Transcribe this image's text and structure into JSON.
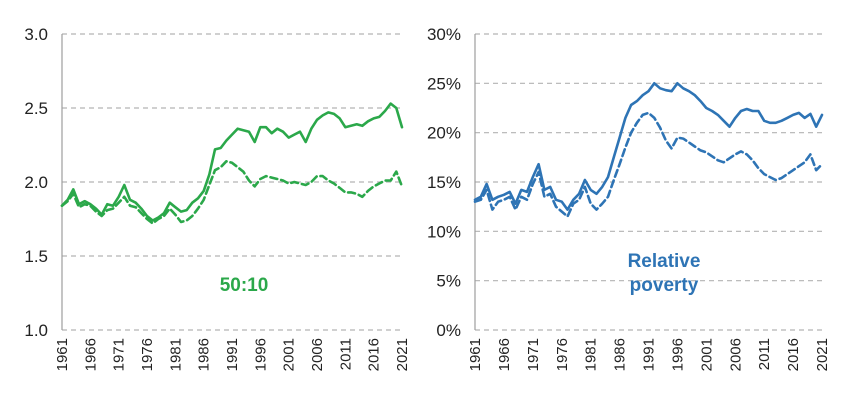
{
  "chart_data": [
    {
      "type": "line",
      "x_ticks": [
        "1961",
        "1966",
        "1971",
        "1976",
        "1981",
        "1986",
        "1991",
        "1996",
        "2001",
        "2006",
        "2011",
        "2016",
        "2021"
      ],
      "y_ticks": [
        "1.0",
        "1.5",
        "2.0",
        "2.5",
        "3.0"
      ],
      "ylim": [
        1.0,
        3.0
      ],
      "xlim": [
        1961,
        2021
      ],
      "grid": "horizontal dashed",
      "annotation": "50:10",
      "color": "#2ba84a",
      "series": [
        {
          "style": "solid",
          "x": [
            1961,
            1962,
            1963,
            1964,
            1965,
            1966,
            1967,
            1968,
            1969,
            1970,
            1971,
            1972,
            1973,
            1974,
            1975,
            1976,
            1977,
            1978,
            1979,
            1980,
            1981,
            1982,
            1983,
            1984,
            1985,
            1986,
            1987,
            1988,
            1989,
            1990,
            1991,
            1992,
            1993,
            1994,
            1995,
            1996,
            1997,
            1998,
            1999,
            2000,
            2001,
            2002,
            2003,
            2004,
            2005,
            2006,
            2007,
            2008,
            2009,
            2010,
            2011,
            2012,
            2013,
            2014,
            2015,
            2016,
            2017,
            2018,
            2019,
            2020,
            2021
          ],
          "values": [
            1.84,
            1.88,
            1.95,
            1.85,
            1.87,
            1.85,
            1.82,
            1.78,
            1.85,
            1.84,
            1.9,
            1.98,
            1.88,
            1.86,
            1.82,
            1.77,
            1.74,
            1.76,
            1.79,
            1.86,
            1.83,
            1.8,
            1.81,
            1.86,
            1.89,
            1.94,
            2.05,
            2.22,
            2.23,
            2.28,
            2.32,
            2.36,
            2.35,
            2.34,
            2.27,
            2.37,
            2.37,
            2.33,
            2.36,
            2.34,
            2.3,
            2.32,
            2.34,
            2.27,
            2.36,
            2.42,
            2.45,
            2.47,
            2.46,
            2.43,
            2.37,
            2.38,
            2.39,
            2.38,
            2.41,
            2.43,
            2.44,
            2.48,
            2.53,
            2.5,
            2.37
          ]
        },
        {
          "style": "dashed",
          "x": [
            1961,
            1962,
            1963,
            1964,
            1965,
            1966,
            1967,
            1968,
            1969,
            1970,
            1971,
            1972,
            1973,
            1974,
            1975,
            1976,
            1977,
            1978,
            1979,
            1980,
            1981,
            1982,
            1983,
            1984,
            1985,
            1986,
            1987,
            1988,
            1989,
            1990,
            1991,
            1992,
            1993,
            1994,
            1995,
            1996,
            1997,
            1998,
            1999,
            2000,
            2001,
            2002,
            2003,
            2004,
            2005,
            2006,
            2007,
            2008,
            2009,
            2010,
            2011,
            2012,
            2013,
            2014,
            2015,
            2016,
            2017,
            2018,
            2019,
            2020,
            2021
          ],
          "values": [
            1.84,
            1.87,
            1.92,
            1.83,
            1.85,
            1.84,
            1.8,
            1.77,
            1.81,
            1.82,
            1.86,
            1.9,
            1.84,
            1.83,
            1.79,
            1.75,
            1.72,
            1.75,
            1.77,
            1.82,
            1.78,
            1.73,
            1.74,
            1.77,
            1.82,
            1.88,
            1.98,
            2.08,
            2.1,
            2.14,
            2.13,
            2.1,
            2.07,
            2.01,
            1.97,
            2.02,
            2.04,
            2.03,
            2.02,
            2.01,
            1.99,
            2.0,
            1.99,
            1.98,
            2.0,
            2.04,
            2.04,
            2.01,
            1.99,
            1.96,
            1.93,
            1.93,
            1.92,
            1.9,
            1.94,
            1.97,
            1.99,
            2.01,
            2.01,
            2.07,
            1.97
          ]
        }
      ]
    },
    {
      "type": "line",
      "x_ticks": [
        "1961",
        "1966",
        "1971",
        "1976",
        "1981",
        "1986",
        "1991",
        "1996",
        "2001",
        "2006",
        "2011",
        "2016",
        "2021"
      ],
      "y_ticks": [
        "0%",
        "5%",
        "10%",
        "15%",
        "20%",
        "25%",
        "30%"
      ],
      "ylim": [
        0,
        30
      ],
      "xlim": [
        1961,
        2021
      ],
      "grid": "horizontal dashed",
      "annotation": [
        "Relative",
        "poverty"
      ],
      "color": "#2e74b5",
      "series": [
        {
          "style": "solid",
          "x": [
            1961,
            1962,
            1963,
            1964,
            1965,
            1966,
            1967,
            1968,
            1969,
            1970,
            1971,
            1972,
            1973,
            1974,
            1975,
            1976,
            1977,
            1978,
            1979,
            1980,
            1981,
            1982,
            1983,
            1984,
            1985,
            1986,
            1987,
            1988,
            1989,
            1990,
            1991,
            1992,
            1993,
            1994,
            1995,
            1996,
            1997,
            1998,
            1999,
            2000,
            2001,
            2002,
            2003,
            2004,
            2005,
            2006,
            2007,
            2008,
            2009,
            2010,
            2011,
            2012,
            2013,
            2014,
            2015,
            2016,
            2017,
            2018,
            2019,
            2020,
            2021
          ],
          "values": [
            13.2,
            13.5,
            14.8,
            13.2,
            13.5,
            13.7,
            14.0,
            12.8,
            14.2,
            14.0,
            15.5,
            16.8,
            14.2,
            14.5,
            13.2,
            13.0,
            12.2,
            13.2,
            13.8,
            15.2,
            14.2,
            13.8,
            14.5,
            15.5,
            17.5,
            19.5,
            21.5,
            22.8,
            23.2,
            23.8,
            24.2,
            25.0,
            24.5,
            24.3,
            24.2,
            25.0,
            24.5,
            24.2,
            23.8,
            23.2,
            22.5,
            22.2,
            21.8,
            21.2,
            20.6,
            21.5,
            22.2,
            22.4,
            22.2,
            22.2,
            21.2,
            21.0,
            21.0,
            21.2,
            21.5,
            21.8,
            22.0,
            21.5,
            21.9,
            20.6,
            21.8
          ]
        },
        {
          "style": "dashed",
          "x": [
            1961,
            1962,
            1963,
            1964,
            1965,
            1966,
            1967,
            1968,
            1969,
            1970,
            1971,
            1972,
            1973,
            1974,
            1975,
            1976,
            1977,
            1978,
            1979,
            1980,
            1981,
            1982,
            1983,
            1984,
            1985,
            1986,
            1987,
            1988,
            1989,
            1990,
            1991,
            1992,
            1993,
            1994,
            1995,
            1996,
            1997,
            1998,
            1999,
            2000,
            2001,
            2002,
            2003,
            2004,
            2005,
            2006,
            2007,
            2008,
            2009,
            2010,
            2011,
            2012,
            2013,
            2014,
            2015,
            2016,
            2017,
            2018,
            2019,
            2020,
            2021
          ],
          "values": [
            13.0,
            13.2,
            14.2,
            12.2,
            13.0,
            13.2,
            13.5,
            12.2,
            13.5,
            13.2,
            14.8,
            16.0,
            13.5,
            13.8,
            12.5,
            12.0,
            11.5,
            12.8,
            13.2,
            14.5,
            12.8,
            12.2,
            12.8,
            13.5,
            15.2,
            16.8,
            18.5,
            20.0,
            21.0,
            21.8,
            22.0,
            21.5,
            20.5,
            19.2,
            18.4,
            19.5,
            19.4,
            19.0,
            18.6,
            18.2,
            18.0,
            17.6,
            17.2,
            17.0,
            17.4,
            17.8,
            18.1,
            17.8,
            17.2,
            16.4,
            15.8,
            15.5,
            15.2,
            15.4,
            15.8,
            16.2,
            16.6,
            17.0,
            17.8,
            16.2,
            16.8
          ]
        }
      ]
    }
  ]
}
